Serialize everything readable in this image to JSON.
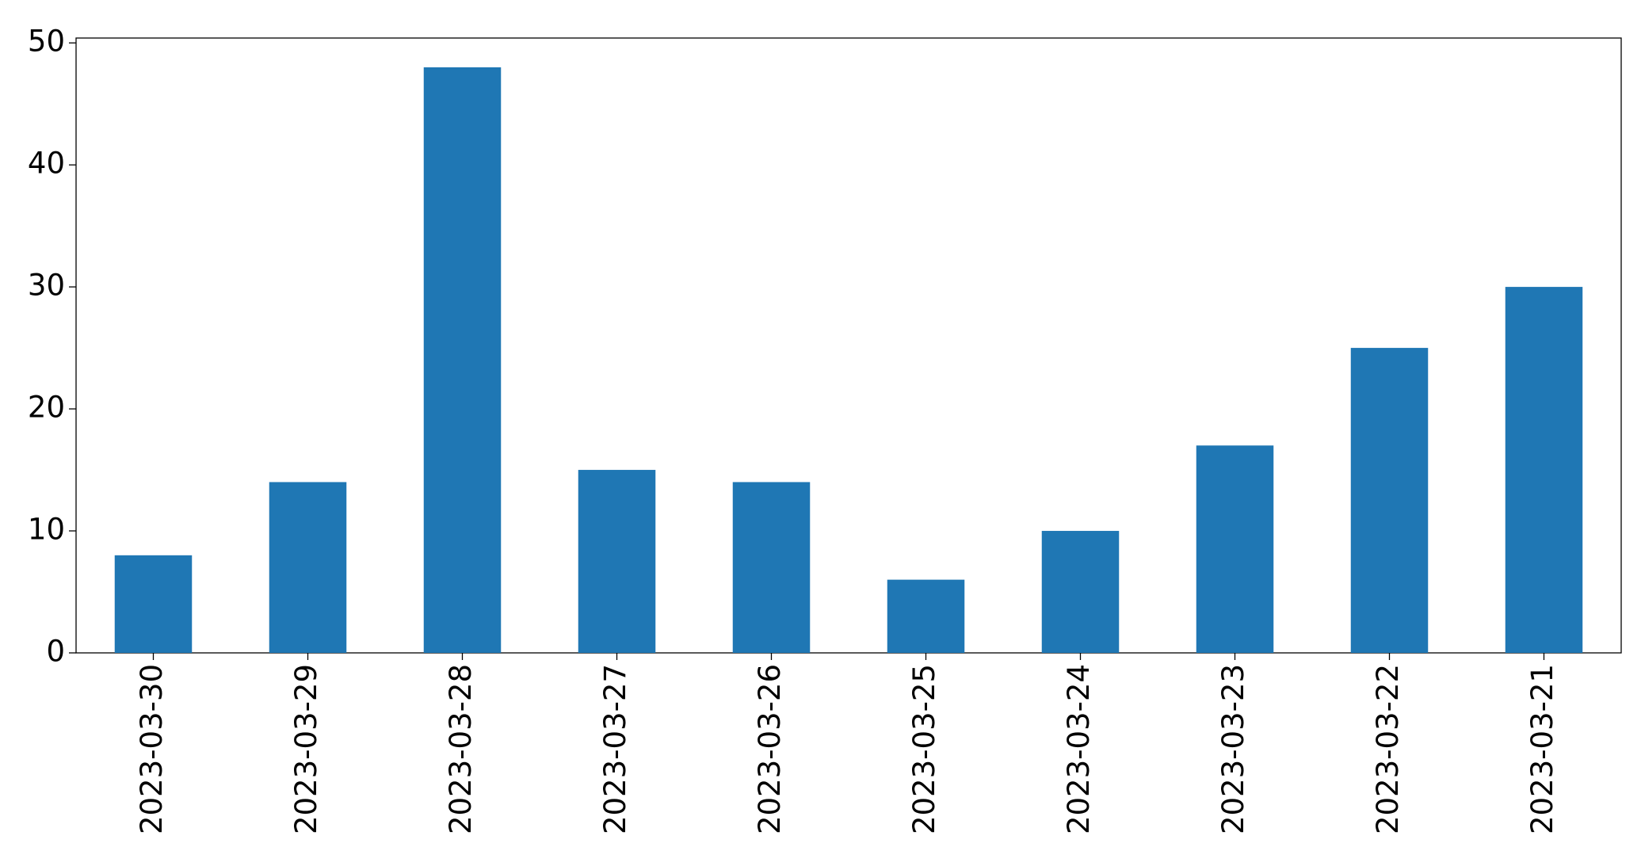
{
  "chart_data": {
    "type": "bar",
    "categories": [
      "2023-03-30",
      "2023-03-29",
      "2023-03-28",
      "2023-03-27",
      "2023-03-26",
      "2023-03-25",
      "2023-03-24",
      "2023-03-23",
      "2023-03-22",
      "2023-03-21"
    ],
    "values": [
      8,
      14,
      48,
      15,
      14,
      6,
      10,
      17,
      25,
      30
    ],
    "color": "#1f77b4",
    "ylim": [
      0,
      50.4
    ],
    "yticks": [
      0,
      10,
      20,
      30,
      40,
      50
    ],
    "grid": false
  }
}
